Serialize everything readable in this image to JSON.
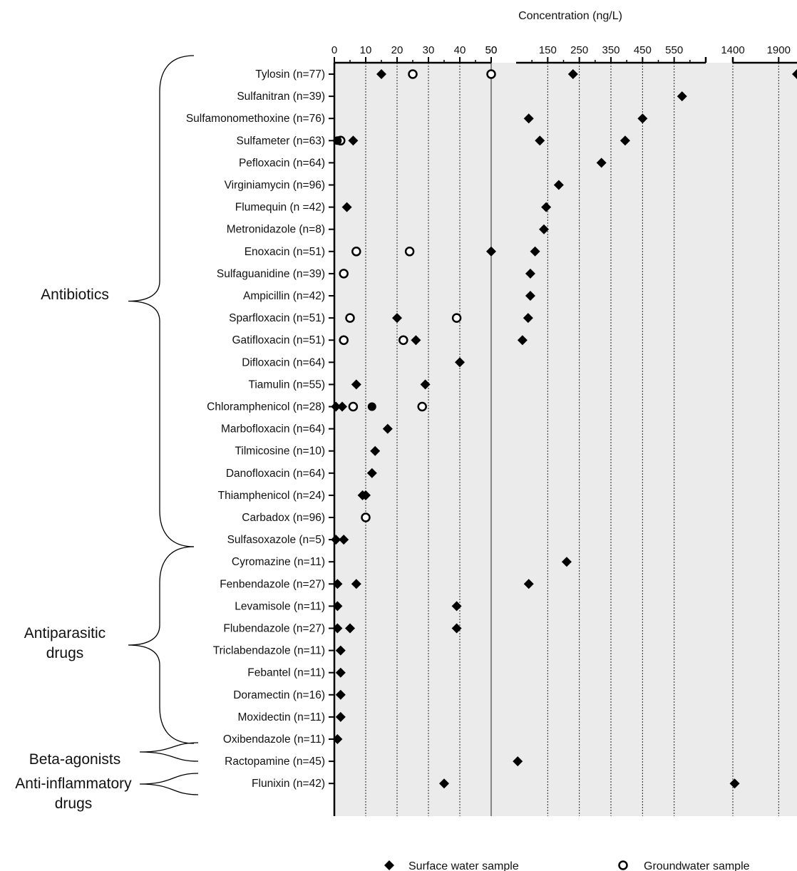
{
  "chart_data": {
    "type": "scatter",
    "title": "",
    "xlabel": "Concentration (ng/L)",
    "ylabel": "",
    "axis_segments": [
      {
        "range": [
          0,
          50
        ],
        "ticks": [
          "0",
          "10",
          "20",
          "30",
          "40",
          "50"
        ],
        "tick_values": [
          0,
          10,
          20,
          30,
          40,
          50
        ]
      },
      {
        "range": [
          50,
          650
        ],
        "ticks": [
          "50",
          "150",
          "250",
          "350",
          "450",
          "550"
        ],
        "tick_values": [
          50,
          150,
          250,
          350,
          450,
          550
        ]
      },
      {
        "range": [
          1400,
          2100
        ],
        "ticks": [
          "1400",
          "1900"
        ],
        "tick_values": [
          1400,
          1900
        ]
      }
    ],
    "categories": [
      "Tylosin (n=77)",
      "Sulfanitran (n=39)",
      "Sulfamonomethoxine (n=76)",
      "Sulfameter (n=63)",
      "Pefloxacin (n=64)",
      "Virginiamycin (n=96)",
      "Flumequin (n =42)",
      "Metronidazole (n=8)",
      "Enoxacin (n=51)",
      "Sulfaguanidine (n=39)",
      "Ampicillin (n=42)",
      "Sparfloxacin (n=51)",
      "Gatifloxacin (n=51)",
      "Difloxacin (n=64)",
      "Tiamulin (n=55)",
      "Chloramphenicol (n=28)",
      "Marbofloxacin (n=64)",
      "Tilmicosine (n=10)",
      "Danofloxacin (n=64)",
      "Thiamphenicol (n=24)",
      "Carbadox (n=96)",
      "Sulfasoxazole (n=5)",
      "Cyromazine (n=11)",
      "Fenbendazole (n=27)",
      "Levamisole (n=11)",
      "Flubendazole (n=27)",
      "Triclabendazole (n=11)",
      "Febantel (n=11)",
      "Doramectin (n=16)",
      "Moxidectin (n=11)",
      "Oxibendazole (n=11)",
      "Ractopamine (n=45)",
      "Flunixin (n=42)"
    ],
    "groups": [
      {
        "label": "Antibiotics",
        "from": 0,
        "to": 21
      },
      {
        "label": "Antiparasitic drugs",
        "from": 21,
        "to": 30
      },
      {
        "label": "Beta-agonists",
        "from": 31,
        "to": 31
      },
      {
        "label": "Anti-inflammatory drugs",
        "from": 32,
        "to": 32
      }
    ],
    "series": [
      {
        "name": "Surface water sample",
        "marker": "diamond",
        "points": [
          [
            0,
            15
          ],
          [
            0,
            230
          ],
          [
            0,
            2100
          ],
          [
            1,
            575
          ],
          [
            2,
            90
          ],
          [
            2,
            450
          ],
          [
            3,
            6
          ],
          [
            3,
            125
          ],
          [
            3,
            395
          ],
          [
            4,
            320
          ],
          [
            5,
            185
          ],
          [
            6,
            4
          ],
          [
            6,
            145
          ],
          [
            7,
            138
          ],
          [
            8,
            50
          ],
          [
            8,
            110
          ],
          [
            9,
            95
          ],
          [
            10,
            95
          ],
          [
            11,
            20
          ],
          [
            11,
            88
          ],
          [
            12,
            26
          ],
          [
            12,
            70
          ],
          [
            13,
            40
          ],
          [
            14,
            7
          ],
          [
            14,
            29
          ],
          [
            15,
            0.5
          ],
          [
            15,
            2.5
          ],
          [
            16,
            17
          ],
          [
            17,
            13
          ],
          [
            18,
            12
          ],
          [
            19,
            9
          ],
          [
            19,
            10
          ],
          [
            21,
            0.5
          ],
          [
            21,
            3
          ],
          [
            22,
            210
          ],
          [
            23,
            1
          ],
          [
            23,
            7
          ],
          [
            23,
            90
          ],
          [
            24,
            1
          ],
          [
            24,
            39
          ],
          [
            25,
            1
          ],
          [
            25,
            5
          ],
          [
            25,
            39
          ],
          [
            26,
            2
          ],
          [
            27,
            2
          ],
          [
            28,
            2
          ],
          [
            29,
            2
          ],
          [
            30,
            1
          ],
          [
            31,
            55
          ],
          [
            32,
            35
          ],
          [
            32,
            1420
          ]
        ]
      },
      {
        "name": "Groundwater sample",
        "marker": "open-circle",
        "points": [
          [
            0,
            25
          ],
          [
            0,
            50
          ],
          [
            3,
            2
          ],
          [
            8,
            7
          ],
          [
            8,
            24
          ],
          [
            9,
            3
          ],
          [
            11,
            5
          ],
          [
            11,
            39
          ],
          [
            12,
            3
          ],
          [
            12,
            22
          ],
          [
            15,
            6
          ],
          [
            15,
            28
          ],
          [
            20,
            10
          ]
        ]
      },
      {
        "name": "",
        "marker": "filled-circle",
        "points": [
          [
            3,
            1
          ],
          [
            15,
            12
          ]
        ]
      }
    ],
    "legend_position": "bottom"
  },
  "legend": {
    "surface_label": "Surface water sample",
    "ground_label": "Groundwater sample"
  }
}
